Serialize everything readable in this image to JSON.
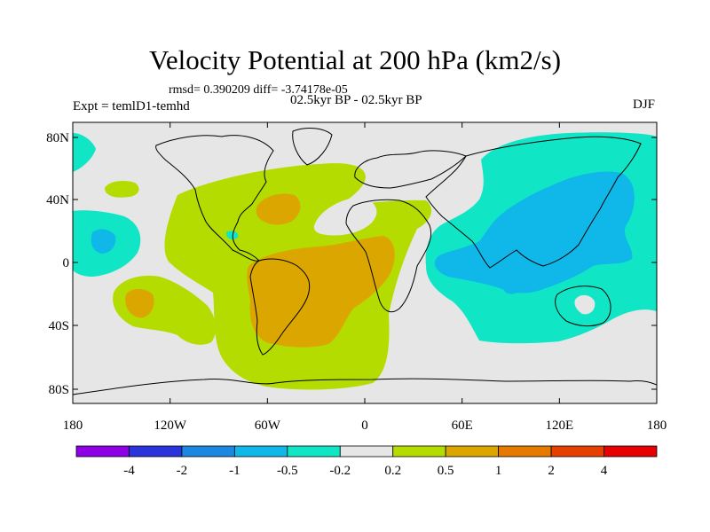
{
  "title": "Velocity Potential at 200 hPa (km2/s)",
  "stats": "rmsd= 0.390209 diff= -3.74178e-05",
  "period": "02.5kyr BP - 02.5kyr BP",
  "experiment": "Expt = temlD1-temhd",
  "season": "DJF",
  "lat_labels": [
    "80N",
    "40N",
    "0",
    "40S",
    "80S"
  ],
  "lon_labels": [
    "180",
    "120W",
    "60W",
    "0",
    "60E",
    "120E",
    "180"
  ],
  "colorbar": {
    "colors": [
      "#8d00e6",
      "#2b33dd",
      "#1a88e0",
      "#10b7e9",
      "#10e6c6",
      "#e6e6e6",
      "#b4dc00",
      "#dca600",
      "#e67a00",
      "#e64000",
      "#e60000"
    ],
    "labels": [
      "-4",
      "-2",
      "-1",
      "-0.5",
      "-0.2",
      "0.2",
      "0.5",
      "1",
      "2",
      "4"
    ]
  },
  "palette": {
    "neutral": "#e6e6e6",
    "pos1": "#b4dc00",
    "pos2": "#dca600",
    "neg1": "#10e6c6",
    "neg2": "#10b7e9"
  }
}
